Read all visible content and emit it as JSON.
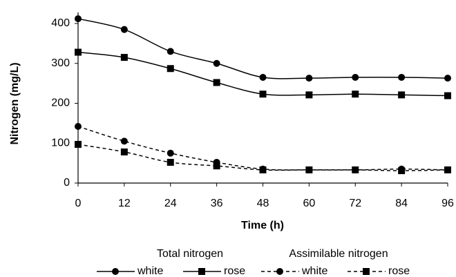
{
  "chart_data": {
    "type": "line",
    "x_label": "Time (h)",
    "y_label": "Nitrogen (mg/L)",
    "x": [
      0,
      12,
      24,
      36,
      48,
      60,
      72,
      84,
      96
    ],
    "xlim": [
      0,
      96
    ],
    "xticks": [
      0,
      12,
      24,
      36,
      48,
      60,
      72,
      84,
      96
    ],
    "ylim": [
      0,
      400
    ],
    "yticks": [
      0,
      100,
      200,
      300,
      400
    ],
    "legend_groups": [
      "Total nitrogen",
      "Assimilable nitrogen"
    ],
    "series": [
      {
        "name": "white",
        "group": 0,
        "color": "#000000",
        "style": "solid",
        "marker": "circle",
        "values": [
          412,
          385,
          330,
          300,
          265,
          263,
          265,
          265,
          263
        ]
      },
      {
        "name": "rose",
        "group": 0,
        "color": "#000000",
        "style": "solid",
        "marker": "square",
        "values": [
          328,
          315,
          287,
          252,
          223,
          221,
          223,
          221,
          219
        ]
      },
      {
        "name": "white",
        "group": 1,
        "color": "#000000",
        "style": "dashed",
        "marker": "circle",
        "values": [
          142,
          105,
          75,
          52,
          35,
          33,
          33,
          35,
          33
        ]
      },
      {
        "name": "rose",
        "group": 1,
        "color": "#000000",
        "style": "dashed",
        "marker": "square",
        "values": [
          97,
          78,
          52,
          43,
          33,
          33,
          33,
          31,
          33
        ]
      }
    ]
  }
}
